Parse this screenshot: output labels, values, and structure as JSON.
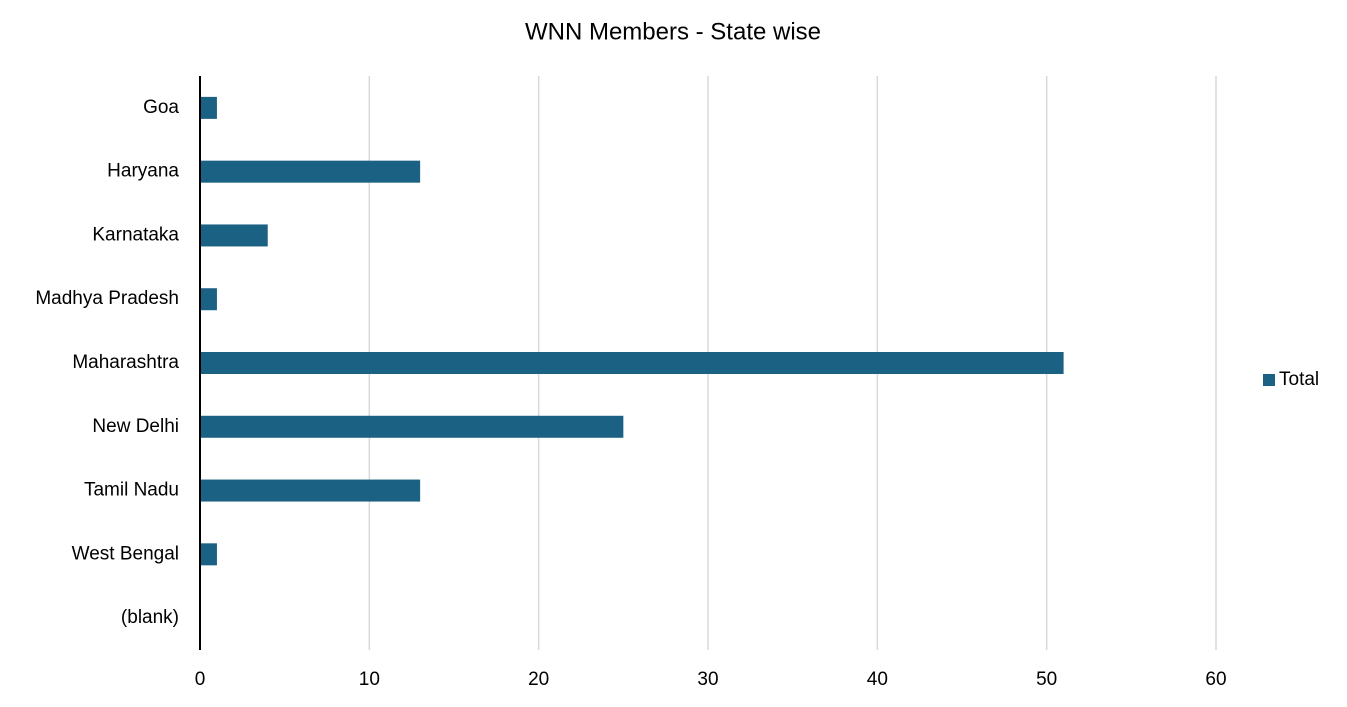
{
  "chart_data": {
    "type": "bar",
    "title": "WNN Members - State wise",
    "categories": [
      "Goa",
      "Haryana",
      "Karnataka",
      "Madhya Pradesh",
      "Maharashtra",
      "New Delhi",
      "Tamil Nadu",
      "West Bengal",
      "(blank)"
    ],
    "series": [
      {
        "name": "Total",
        "color": "#1b6183",
        "values": [
          1,
          13,
          4,
          1,
          51,
          25,
          13,
          1,
          null
        ]
      }
    ],
    "xlim": [
      0,
      60
    ],
    "xticks": [
      0,
      10,
      20,
      30,
      40,
      50,
      60
    ],
    "grid": true,
    "legend": "right"
  }
}
